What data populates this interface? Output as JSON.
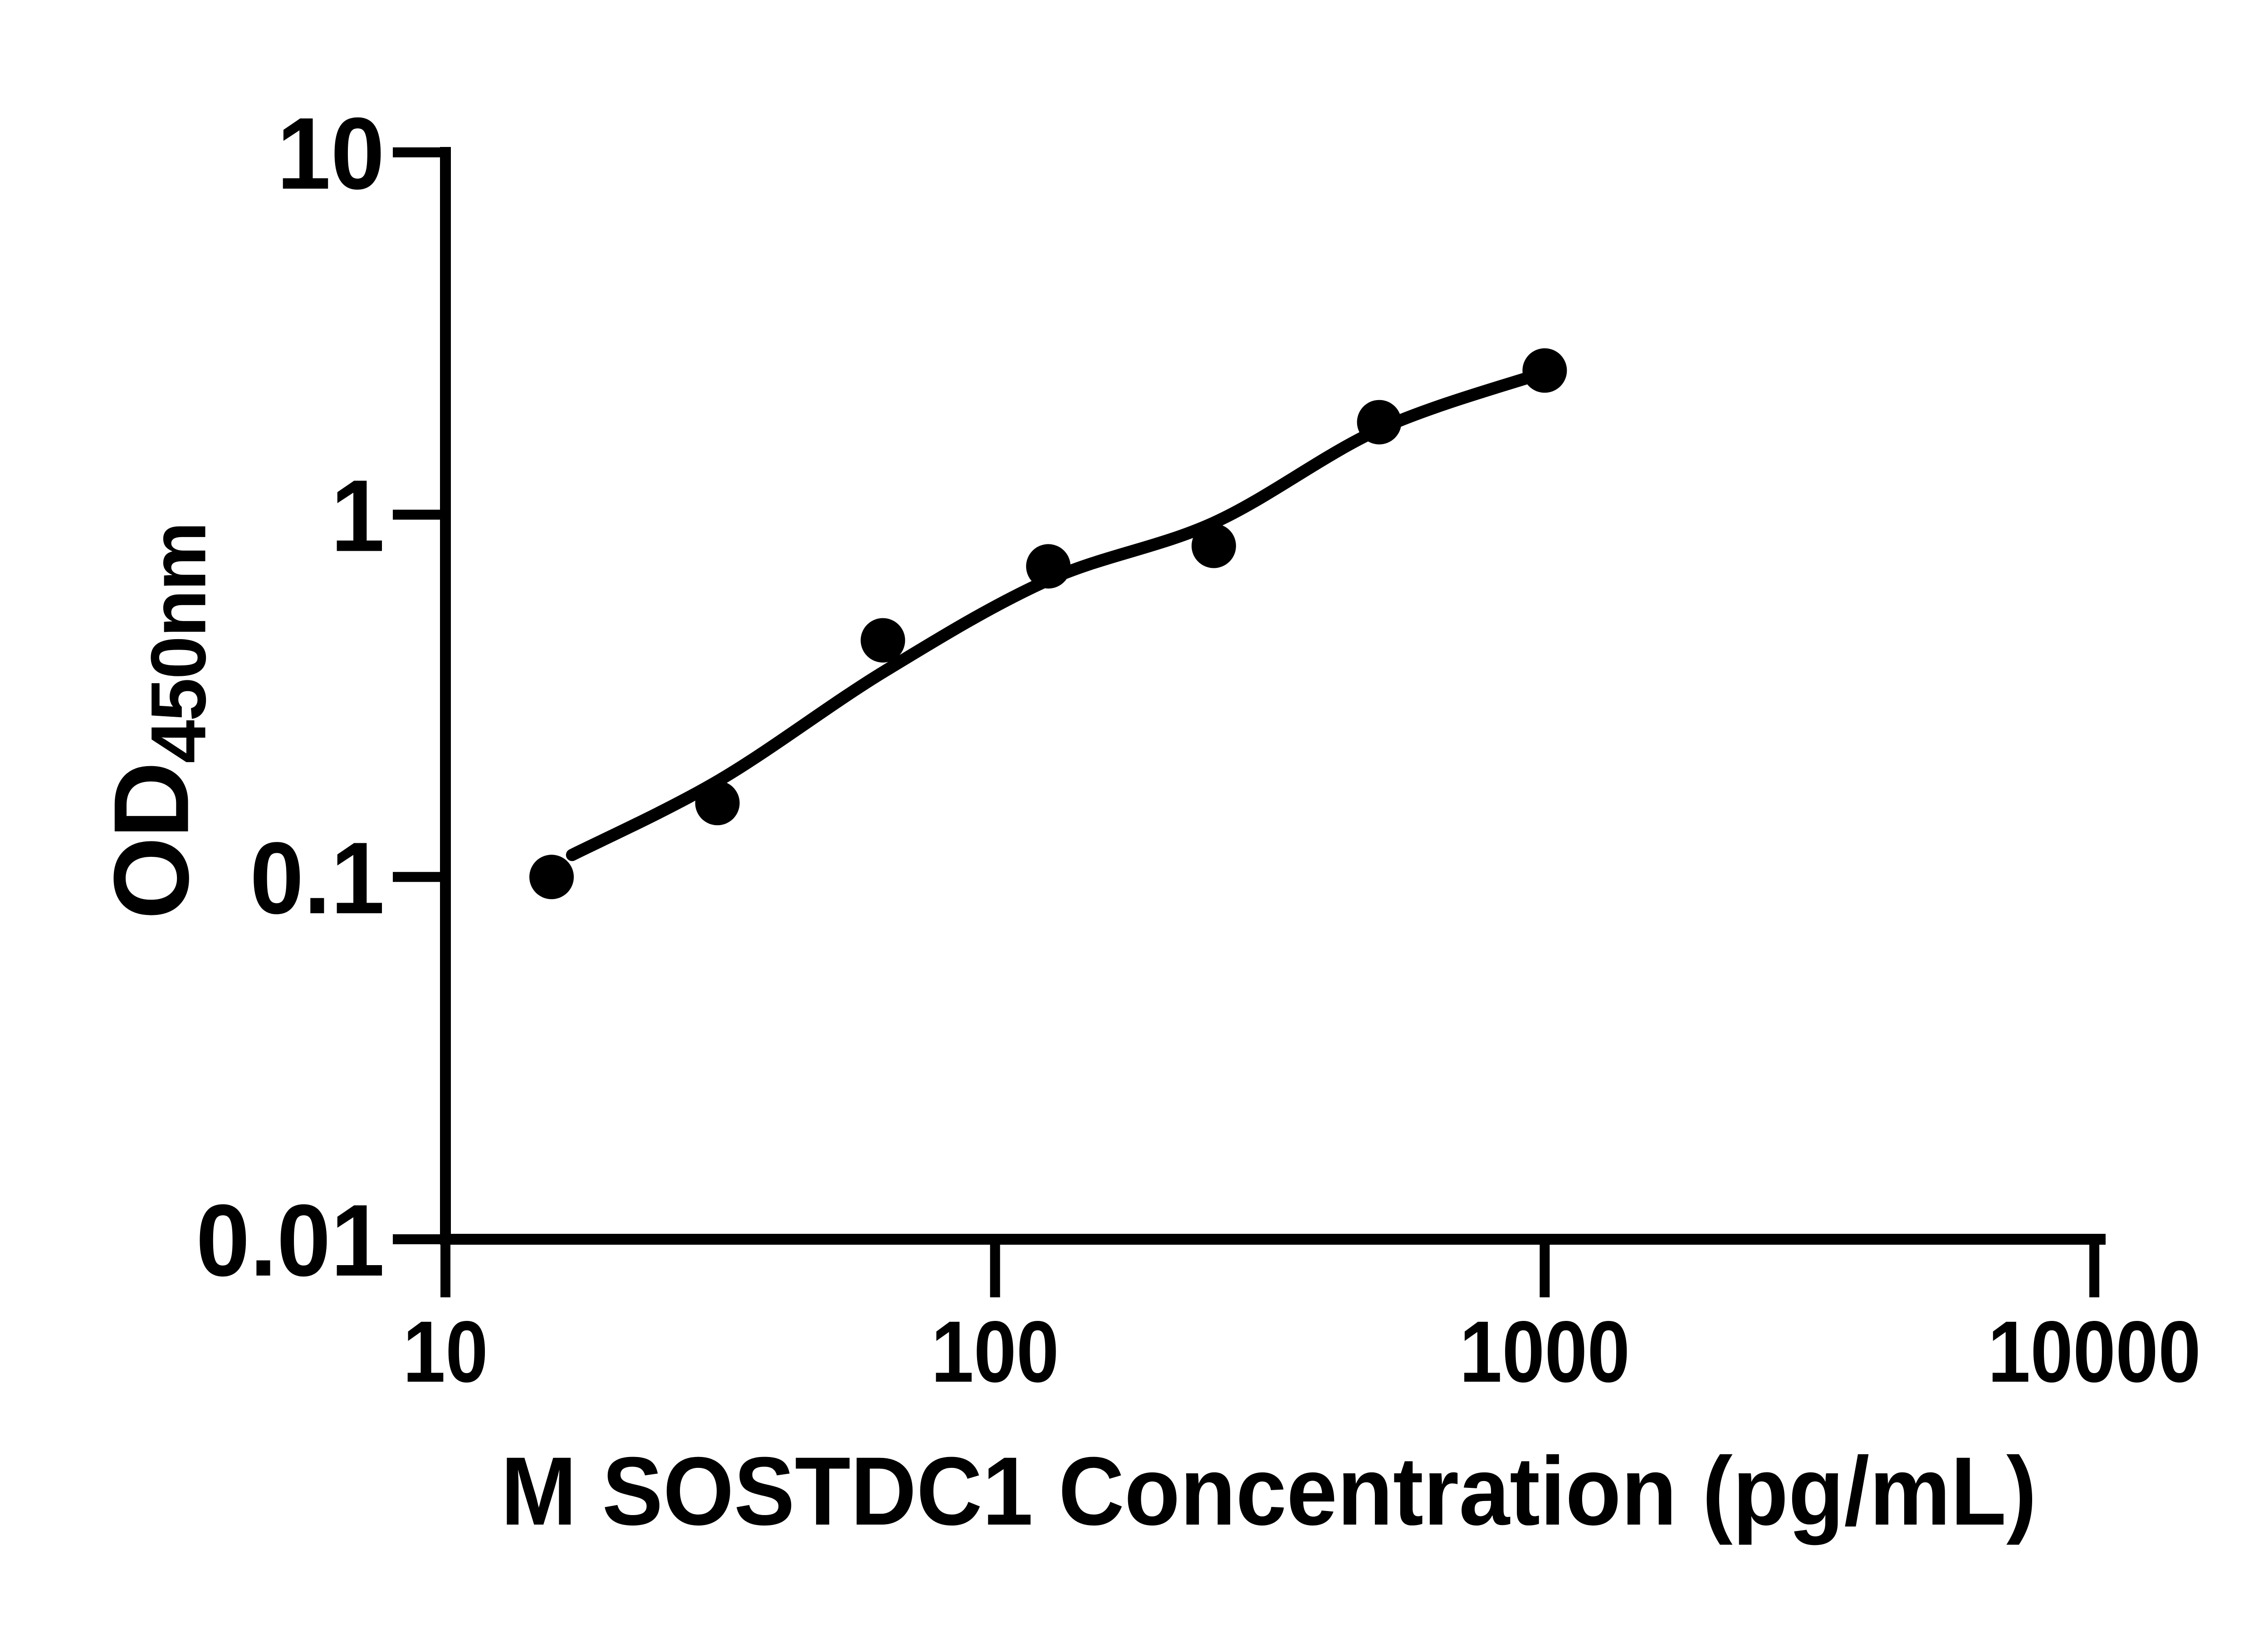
{
  "figure": {
    "background": "#ffffff",
    "ink_color": "#000000"
  },
  "chart_data": {
    "type": "scatter",
    "title": "",
    "xlabel": "M SOSTDC1 Concentration (pg/mL)",
    "ylabel": "OD",
    "ylabel_subscript": "450nm",
    "x_scale": "log",
    "y_scale": "log",
    "xlim": [
      10,
      10000
    ],
    "ylim": [
      0.01,
      10
    ],
    "x_ticks": [
      {
        "value": 10,
        "label": "10"
      },
      {
        "value": 100,
        "label": "100"
      },
      {
        "value": 1000,
        "label": "1000"
      },
      {
        "value": 10000,
        "label": "10000"
      }
    ],
    "y_ticks": [
      {
        "value": 10,
        "label": "10"
      },
      {
        "value": 1,
        "label": "1"
      },
      {
        "value": 0.1,
        "label": "0.1"
      },
      {
        "value": 0.01,
        "label": "0.01"
      }
    ],
    "grid": false,
    "legend": "none",
    "series": [
      {
        "name": "standard-data-points",
        "type": "scatter",
        "marker": "filled-circle",
        "x": [
          15.6,
          31.25,
          62.5,
          125,
          250,
          500,
          1000
        ],
        "y": [
          0.1,
          0.16,
          0.45,
          0.72,
          0.82,
          1.8,
          2.5
        ]
      },
      {
        "name": "fitted-standard-curve",
        "type": "line",
        "x": [
          17,
          31.5,
          63,
          125,
          250,
          500,
          1000
        ],
        "y": [
          0.115,
          0.185,
          0.37,
          0.66,
          0.95,
          1.72,
          2.47
        ]
      }
    ]
  }
}
